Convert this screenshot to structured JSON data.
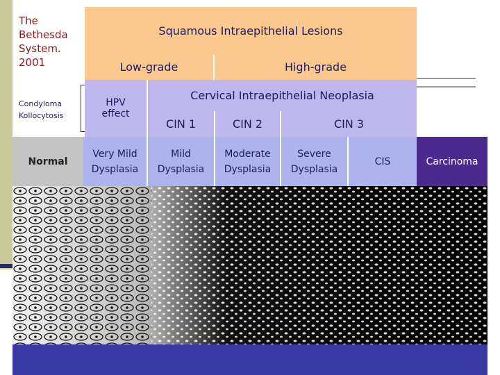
{
  "sidebar": {
    "title_lines": [
      "The",
      "Bethesda",
      "System.",
      "2001"
    ],
    "note_lines": [
      "Condyloma",
      "Kollocytosis"
    ]
  },
  "header": {
    "title": "Squamous Intraepithelial Lesions",
    "grades": [
      "Low-grade",
      "High-grade"
    ]
  },
  "cin": {
    "hpv_lines": [
      "HPV",
      "effect"
    ],
    "title": "Cervical Intraepithelial Neoplasia",
    "levels": [
      "CIN 1",
      "CIN 2",
      "CIN 3"
    ]
  },
  "stages": [
    [
      "Normal"
    ],
    [
      "Very Mild",
      "Dysplasia"
    ],
    [
      "Mild",
      "Dysplasia"
    ],
    [
      "Moderate",
      "Dysplasia"
    ],
    [
      "Severe",
      "Dysplasia"
    ],
    [
      "CIS"
    ],
    [
      "Carcinoma"
    ]
  ]
}
